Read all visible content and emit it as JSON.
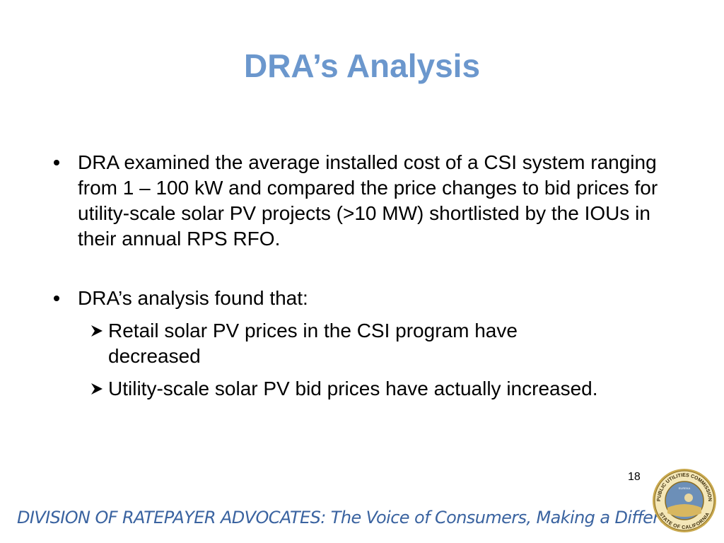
{
  "title": "DRA’s Analysis",
  "bullets": [
    {
      "text": "DRA examined the average installed cost of a CSI system ranging from 1 – 100 kW and compared the price changes to bid prices for utility-scale solar PV projects (>10 MW) shortlisted by the IOUs in their annual RPS RFO."
    },
    {
      "text": "DRA’s analysis found that:",
      "sub_bullets": [
        "Retail solar PV prices in the CSI program have decreased",
        "Utility-scale solar PV bid prices have actually increased."
      ]
    }
  ],
  "page_number": "18",
  "footer": "DIVISION OF RATEPAYER ADVOCATES: The Voice of Consumers, Making a Difference!",
  "seal": {
    "top": "PUBLIC UTILITIES COMMISSION",
    "bottom": "STATE OF CALIFORNIA",
    "motto": "EUREKA"
  }
}
